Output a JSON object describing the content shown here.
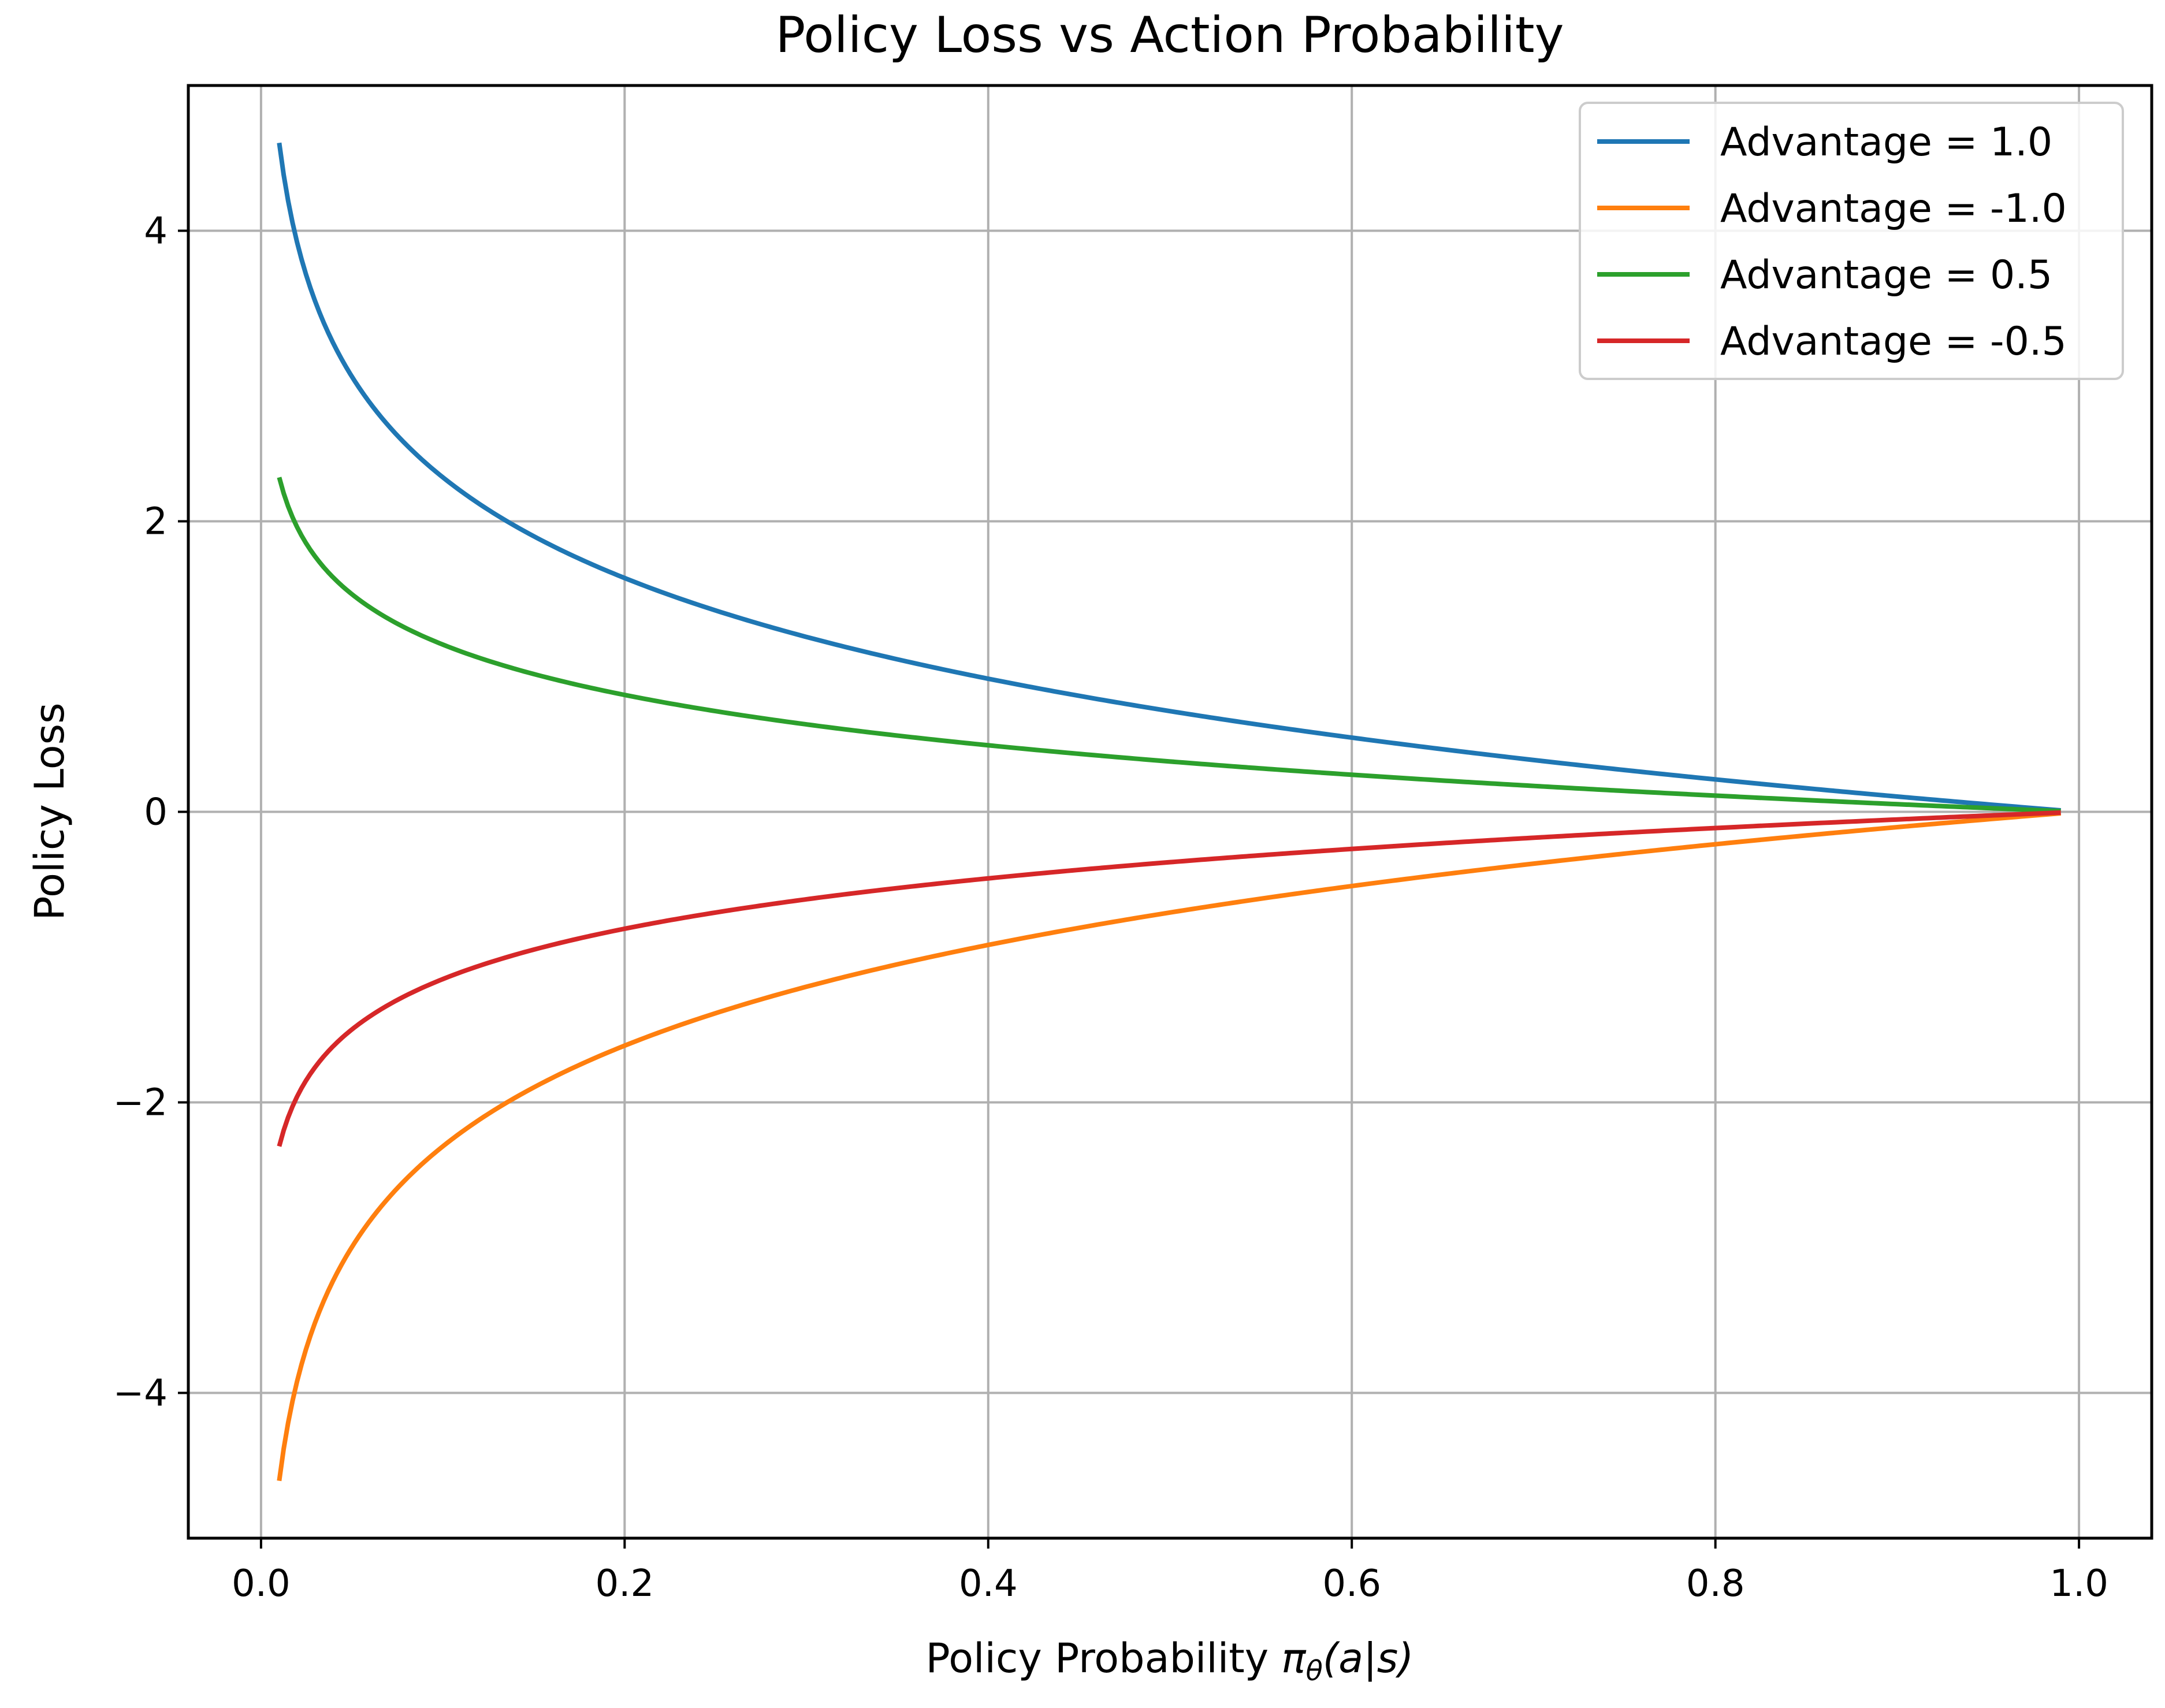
{
  "chart_data": {
    "type": "line",
    "title": "Policy Loss vs Action Probability",
    "xlabel": "Policy Probability",
    "xlabel_symbol": "π",
    "xlabel_subscript": "θ",
    "xlabel_args": "(a|s)",
    "ylabel": "Policy Loss",
    "xlim": [
      -0.04,
      1.04
    ],
    "ylim": [
      -5.0,
      5.0
    ],
    "x_domain": [
      0.01,
      0.99
    ],
    "x_ticks": [
      0.0,
      0.2,
      0.4,
      0.6,
      0.8,
      1.0
    ],
    "x_tick_labels": [
      "0.0",
      "0.2",
      "0.4",
      "0.6",
      "0.8",
      "1.0"
    ],
    "y_ticks": [
      -4,
      -2,
      0,
      2,
      4
    ],
    "y_tick_labels": [
      "−4",
      "−2",
      "0",
      "2",
      "4"
    ],
    "grid": true,
    "legend_position": "top-right",
    "formula": "-advantage * ln(p)",
    "series": [
      {
        "name": "Advantage = 1.0",
        "advantage": 1.0,
        "color": "#1f77b4"
      },
      {
        "name": "Advantage = -1.0",
        "advantage": -1.0,
        "color": "#ff7f0e"
      },
      {
        "name": "Advantage = 0.5",
        "advantage": 0.5,
        "color": "#2ca02c"
      },
      {
        "name": "Advantage = -0.5",
        "advantage": -0.5,
        "color": "#d62728"
      }
    ]
  }
}
